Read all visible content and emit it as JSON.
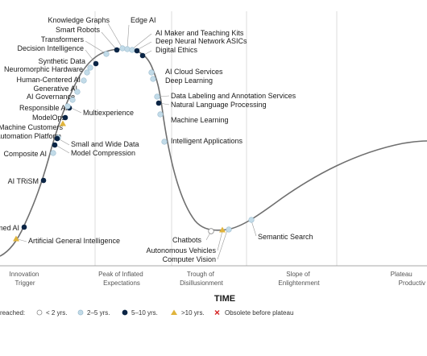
{
  "chart_data": {
    "type": "scatter",
    "x_axis_title": "TIME",
    "phases": [
      [
        "Innovation",
        "Trigger"
      ],
      [
        "Peak of Inflated",
        "Expectations"
      ],
      [
        "Trough of",
        "Disillusionment"
      ],
      [
        "Slope of",
        "Enlightenment"
      ],
      [
        "Plateau",
        "Productiv"
      ]
    ],
    "legend": {
      "title": "reached:",
      "items": [
        {
          "key": "lt2",
          "label": "< 2 yrs."
        },
        {
          "key": "2to5",
          "label": "2–5 yrs."
        },
        {
          "key": "5to10",
          "label": "5–10 yrs."
        },
        {
          "key": "gt10",
          "label": ">10 yrs."
        },
        {
          "key": "obsolete",
          "label": "Obsolete before plateau"
        }
      ]
    },
    "colors": {
      "lt2": "#ffffff",
      "2to5": "#c2dbe8",
      "5to10": "#0b2545",
      "gt10": "#e0b43c",
      "obsolete": "#d62828",
      "curve": "#6f6f6f"
    },
    "technologies": [
      {
        "name": "Physics-Informed AI",
        "status": "5to10"
      },
      {
        "name": "Artificial General Intelligence",
        "status": "gt10"
      },
      {
        "name": "AI TRiSM",
        "status": "5to10"
      },
      {
        "name": "Composite AI",
        "status": "2to5"
      },
      {
        "name": "Orchestration and Automation Platform",
        "status": "2to5"
      },
      {
        "name": "Machine Customers",
        "status": "gt10"
      },
      {
        "name": "ModelOps",
        "status": "5to10"
      },
      {
        "name": "Responsible AI",
        "status": "5to10"
      },
      {
        "name": "AI Governance",
        "status": "2to5"
      },
      {
        "name": "Generative AI",
        "status": "2to5"
      },
      {
        "name": "Human-Centered AI",
        "status": "2to5"
      },
      {
        "name": "Neuromorphic Hardware",
        "status": "2to5"
      },
      {
        "name": "Synthetic Data",
        "status": "2to5"
      },
      {
        "name": "Decision Intelligence",
        "status": "5to10"
      },
      {
        "name": "Transformers",
        "status": "2to5"
      },
      {
        "name": "Smart Robots",
        "status": "5to10"
      },
      {
        "name": "Knowledge Graphs",
        "status": "2to5"
      },
      {
        "name": "Edge AI",
        "status": "2to5"
      },
      {
        "name": "AI Maker and Teaching Kits",
        "status": "2to5"
      },
      {
        "name": "Deep Neural Network ASICs",
        "status": "5to10"
      },
      {
        "name": "Digital Ethics",
        "status": "5to10"
      },
      {
        "name": "AI Cloud Services",
        "status": "2to5"
      },
      {
        "name": "Deep Learning",
        "status": "2to5"
      },
      {
        "name": "Data Labeling and Annotation Services",
        "status": "2to5"
      },
      {
        "name": "Natural Language Processing",
        "status": "5to10"
      },
      {
        "name": "Machine Learning",
        "status": "2to5"
      },
      {
        "name": "Intelligent Applications",
        "status": "2to5"
      },
      {
        "name": "Multiexperience",
        "status": "2to5"
      },
      {
        "name": "Small and Wide Data",
        "status": "5to10"
      },
      {
        "name": "Model Compression",
        "status": "5to10"
      },
      {
        "name": "Chatbots",
        "status": "lt2"
      },
      {
        "name": "Autonomous Vehicles",
        "status": "gt10"
      },
      {
        "name": "Computer Vision",
        "status": "2to5"
      },
      {
        "name": "Semantic Search",
        "status": "2to5"
      }
    ]
  }
}
